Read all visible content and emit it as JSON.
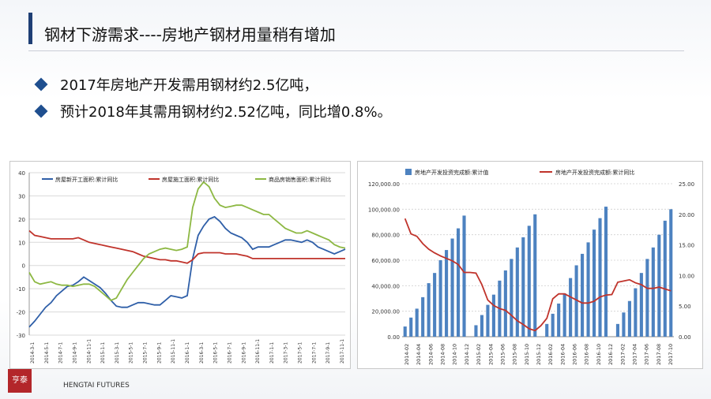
{
  "title": "钢材下游需求----房地产钢材用量稍有增加",
  "bullets": [
    "2017年房地产开发需用钢材约2.5亿吨，",
    "预计2018年其需用钢材约2.52亿吨，同比增0.8%。"
  ],
  "logo": {
    "seal": "亨泰",
    "en": "HENGTAI FUTURES"
  },
  "colors": {
    "blue": "#2f5fa8",
    "red": "#c0332b",
    "green": "#8db843",
    "bar": "#4d82c0",
    "title_accent": "#1f3f75"
  },
  "chart_data": [
    {
      "type": "line",
      "series": [
        {
          "name": "房屋新开工面积:累计同比",
          "color": "#2f5fa8",
          "values": [
            -26.5,
            -24,
            -21,
            -18,
            -16,
            -13,
            -11,
            -9,
            -8.5,
            -7,
            -5,
            -6.5,
            -8,
            -9.5,
            -12,
            -15,
            -17.5,
            -18,
            -18,
            -17,
            -16,
            -16,
            -16.5,
            -17,
            -17,
            -15,
            -13,
            -13.5,
            -14,
            -13,
            3,
            13,
            17,
            20,
            21,
            19,
            16,
            14,
            13,
            12,
            10,
            7,
            8,
            8,
            8,
            9,
            10,
            11,
            11,
            10.5,
            10,
            11,
            10,
            8,
            7,
            6,
            5,
            6,
            7
          ]
        },
        {
          "name": "房屋施工面积:累计同比",
          "color": "#c0332b",
          "values": [
            15,
            13,
            12.5,
            12,
            11.5,
            11.5,
            11.5,
            11.5,
            11.5,
            12,
            11,
            10,
            9.5,
            9,
            8.5,
            8,
            7.5,
            7,
            6.5,
            6,
            5,
            4,
            3.5,
            3,
            2.5,
            2.5,
            2,
            2,
            1.5,
            1,
            2.5,
            5,
            5.5,
            5.5,
            5.5,
            5.5,
            5,
            5,
            5,
            4.5,
            4,
            3,
            3,
            3,
            3,
            3,
            3,
            3,
            3,
            3,
            3,
            3,
            3,
            3,
            3,
            3,
            3,
            3,
            3
          ]
        },
        {
          "name": "商品房销售面积:累计同比",
          "color": "#8db843",
          "values": [
            -3,
            -7,
            -8,
            -7.5,
            -7,
            -8,
            -8.5,
            -8.5,
            -9,
            -8.5,
            -8,
            -8,
            -9,
            -11,
            -13,
            -15,
            -14,
            -10,
            -6,
            -3,
            0,
            3,
            5,
            6,
            7,
            7.5,
            7,
            6.5,
            7,
            8,
            25,
            33,
            36,
            34,
            29,
            26,
            25,
            25.5,
            26,
            26,
            25,
            24,
            23,
            22,
            22,
            20,
            18,
            16,
            15,
            14,
            14,
            15,
            14,
            13,
            12,
            11,
            9,
            8,
            7.5
          ]
        }
      ],
      "x_labels": [
        "2014-3-1",
        "2014-5-1",
        "2014-7-1",
        "2014-9-1",
        "2014-11-1",
        "2015-1-1",
        "2015-3-1",
        "2015-5-1",
        "2015-7-1",
        "2015-9-1",
        "2015-11-1",
        "2016-1-1",
        "2016-3-1",
        "2016-5-1",
        "2016-7-1",
        "2016-9-1",
        "2016-11-1",
        "2017-1-1",
        "2017-3-1",
        "2017-5-1",
        "2017-7-1",
        "2017-9-1",
        "2017-11-1"
      ],
      "y_ticks": [
        40,
        30,
        20,
        10,
        0,
        -10,
        -20,
        -30
      ],
      "ylim": [
        -30,
        40
      ],
      "grid": true,
      "legend": "top"
    },
    {
      "type": "bar",
      "x_labels": [
        "2014-02",
        "2014-04",
        "2014-06",
        "2014-08",
        "2014-10",
        "2014-12",
        "2015-02",
        "2015-04",
        "2015-06",
        "2015-08",
        "2015-10",
        "2015-12",
        "2016-02",
        "2016-04",
        "2016-06",
        "2016-08",
        "2016-10",
        "2016-12",
        "2017-02",
        "2017-04",
        "2017-06",
        "2017-08",
        "2017-10"
      ],
      "series": [
        {
          "name": "房地产开发投资完成额:累计值",
          "color": "#4d82c0",
          "axis": "left",
          "values": [
            8000,
            15000,
            22000,
            31000,
            42000,
            50000,
            60000,
            68000,
            77000,
            85000,
            95000,
            null,
            9000,
            17000,
            25000,
            33000,
            44000,
            52000,
            61000,
            70000,
            78000,
            87000,
            96000,
            null,
            10000,
            18000,
            26000,
            34000,
            46000,
            56000,
            65000,
            74000,
            84000,
            93000,
            102000,
            null,
            10000,
            19000,
            28000,
            38000,
            50000,
            61000,
            70000,
            80000,
            91000,
            100000
          ]
        },
        {
          "name": "房地产开发投资完成额:累计同比",
          "color": "#c0332b",
          "type": "line",
          "axis": "right",
          "values": [
            19.3,
            16.8,
            16.4,
            15.2,
            14.3,
            13.7,
            13.2,
            12.8,
            12.4,
            11.8,
            10.5,
            10.5,
            10.4,
            8.5,
            6,
            5.1,
            4.6,
            4.3,
            3.5,
            2.6,
            2,
            1.3,
            1,
            1.8,
            3,
            6.2,
            7,
            7,
            6.5,
            6,
            5.5,
            5.5,
            5.8,
            6.5,
            6.8,
            6.9,
            8.9,
            9.1,
            9.3,
            8.8,
            8.5,
            7.9,
            7.9,
            8.1,
            7.8,
            7.5
          ]
        }
      ],
      "y_left_ticks": [
        "120,000.00",
        "100,000.00",
        "80,000.00",
        "60,000.00",
        "40,000.00",
        "20,000.00",
        "0.00"
      ],
      "y_right_ticks": [
        "25.00",
        "20.00",
        "15.00",
        "10.00",
        "5.00",
        "0.00"
      ],
      "ylim_left": [
        0,
        120000
      ],
      "ylim_right": [
        0,
        25
      ],
      "legend": "top"
    }
  ]
}
